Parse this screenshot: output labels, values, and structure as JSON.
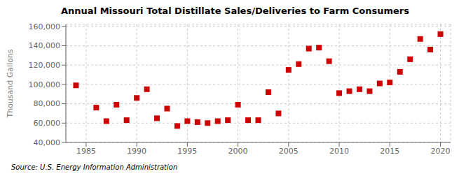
{
  "chart_data": {
    "type": "scatter",
    "title": "Annual Missouri Total Distillate Sales/Deliveries to Farm Consumers",
    "ylabel": "Thousand Gallons",
    "annotation": "Source: U.S. Energy Information Administration",
    "color": "#cc0000",
    "marker": "square",
    "grid": true,
    "xlim": [
      1983,
      2021
    ],
    "ylim": [
      40000,
      162000
    ],
    "xticks": [
      1985,
      1990,
      1995,
      2000,
      2005,
      2010,
      2015,
      2020
    ],
    "yticks": [
      {
        "value": 40000,
        "label": "40,000"
      },
      {
        "value": 60000,
        "label": "60,000"
      },
      {
        "value": 80000,
        "label": "80,000"
      },
      {
        "value": 100000,
        "label": "100,000"
      },
      {
        "value": 120000,
        "label": "120,000"
      },
      {
        "value": 140000,
        "label": "140,000"
      },
      {
        "value": 160000,
        "label": "160,000"
      }
    ],
    "x": [
      1984,
      1986,
      1987,
      1988,
      1989,
      1990,
      1991,
      1992,
      1993,
      1994,
      1995,
      1996,
      1997,
      1998,
      1999,
      2000,
      2001,
      2002,
      2003,
      2004,
      2005,
      2006,
      2007,
      2008,
      2009,
      2010,
      2011,
      2012,
      2013,
      2014,
      2015,
      2016,
      2017,
      2018,
      2019,
      2020
    ],
    "values": [
      99000,
      76000,
      62000,
      79000,
      63000,
      86000,
      95000,
      65000,
      75000,
      57000,
      62000,
      61000,
      60000,
      62000,
      63000,
      79000,
      63000,
      63000,
      92000,
      70000,
      115000,
      121000,
      137000,
      138000,
      124000,
      91000,
      93000,
      95000,
      93000,
      101000,
      102000,
      113000,
      126000,
      147000,
      136000,
      152000
    ]
  }
}
